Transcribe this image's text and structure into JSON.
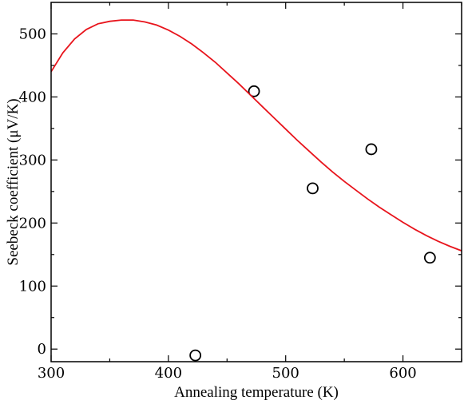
{
  "chart_data": {
    "type": "scatter",
    "title": "",
    "xlabel": "Annealing temperature (K)",
    "ylabel": "Seebeck coefficient (μV/K)",
    "xlim": [
      300,
      650
    ],
    "ylim": [
      -20,
      550
    ],
    "x_ticks": [
      300,
      400,
      500,
      600
    ],
    "y_ticks": [
      0,
      100,
      200,
      300,
      400,
      500
    ],
    "grid": false,
    "legend": "none",
    "series": [
      {
        "kind": "points",
        "marker": "open-circle",
        "color": "#000000",
        "points": [
          {
            "x": 423,
            "y": -10
          },
          {
            "x": 473,
            "y": 409
          },
          {
            "x": 523,
            "y": 255
          },
          {
            "x": 573,
            "y": 317
          },
          {
            "x": 623,
            "y": 145
          }
        ]
      },
      {
        "kind": "line",
        "color": "#e8141c",
        "points": [
          {
            "x": 300,
            "y": 440
          },
          {
            "x": 310,
            "y": 470
          },
          {
            "x": 320,
            "y": 492
          },
          {
            "x": 330,
            "y": 507
          },
          {
            "x": 340,
            "y": 516
          },
          {
            "x": 350,
            "y": 520
          },
          {
            "x": 360,
            "y": 522
          },
          {
            "x": 370,
            "y": 522
          },
          {
            "x": 380,
            "y": 519
          },
          {
            "x": 390,
            "y": 514
          },
          {
            "x": 400,
            "y": 506
          },
          {
            "x": 410,
            "y": 496
          },
          {
            "x": 420,
            "y": 484
          },
          {
            "x": 430,
            "y": 470
          },
          {
            "x": 440,
            "y": 455
          },
          {
            "x": 450,
            "y": 438
          },
          {
            "x": 460,
            "y": 421
          },
          {
            "x": 470,
            "y": 403
          },
          {
            "x": 480,
            "y": 385
          },
          {
            "x": 490,
            "y": 367
          },
          {
            "x": 500,
            "y": 349
          },
          {
            "x": 510,
            "y": 331
          },
          {
            "x": 520,
            "y": 314
          },
          {
            "x": 530,
            "y": 297
          },
          {
            "x": 540,
            "y": 281
          },
          {
            "x": 550,
            "y": 266
          },
          {
            "x": 560,
            "y": 252
          },
          {
            "x": 570,
            "y": 238
          },
          {
            "x": 580,
            "y": 225
          },
          {
            "x": 590,
            "y": 213
          },
          {
            "x": 600,
            "y": 201
          },
          {
            "x": 610,
            "y": 190
          },
          {
            "x": 620,
            "y": 180
          },
          {
            "x": 630,
            "y": 171
          },
          {
            "x": 640,
            "y": 163
          },
          {
            "x": 650,
            "y": 156
          }
        ]
      }
    ]
  }
}
